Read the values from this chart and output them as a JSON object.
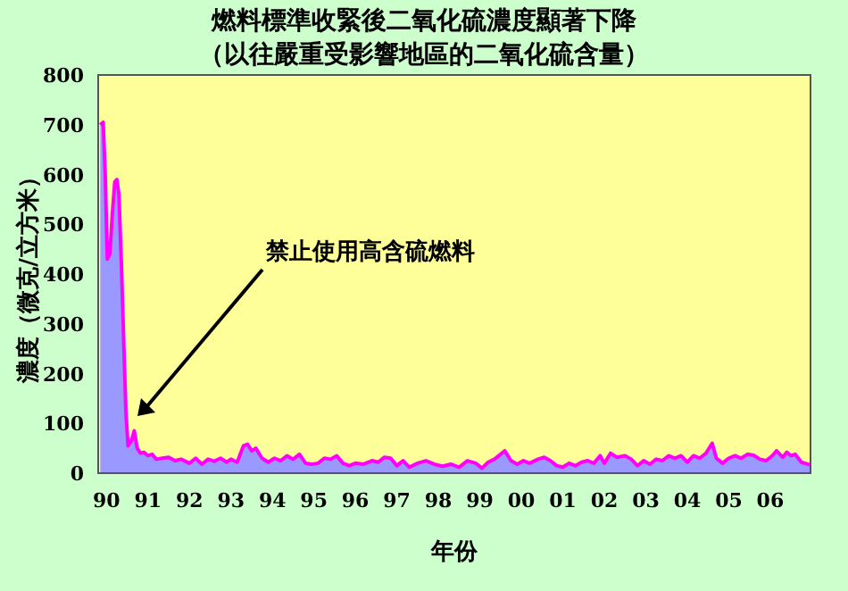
{
  "chart_data": {
    "type": "area",
    "title": "燃料標準收緊後二氧化硫濃度顯著下降",
    "subtitle": "（以往嚴重受影響地區的二氧化硫含量）",
    "xlabel": "年份",
    "ylabel": "濃度（微克/立方米）",
    "annotations": [
      "禁止使用高含硫燃料"
    ],
    "xlim": [
      1989.8,
      2006.97
    ],
    "ylim": [
      0,
      800
    ],
    "xticks": [
      {
        "value": 1990,
        "label": "90"
      },
      {
        "value": 1991,
        "label": "91"
      },
      {
        "value": 1992,
        "label": "92"
      },
      {
        "value": 1993,
        "label": "93"
      },
      {
        "value": 1994,
        "label": "94"
      },
      {
        "value": 1995,
        "label": "95"
      },
      {
        "value": 1996,
        "label": "96"
      },
      {
        "value": 1997,
        "label": "97"
      },
      {
        "value": 1998,
        "label": "98"
      },
      {
        "value": 1999,
        "label": "99"
      },
      {
        "value": 2000,
        "label": "00"
      },
      {
        "value": 2001,
        "label": "01"
      },
      {
        "value": 2002,
        "label": "02"
      },
      {
        "value": 2003,
        "label": "03"
      },
      {
        "value": 2004,
        "label": "04"
      },
      {
        "value": 2005,
        "label": "05"
      },
      {
        "value": 2006,
        "label": "06"
      }
    ],
    "yticks": [
      0,
      100,
      200,
      300,
      400,
      500,
      600,
      700,
      800
    ],
    "grid": false,
    "marker": "none",
    "line_style": "solid",
    "series": [
      {
        "color": "#9999ff",
        "x": [
          1989.85,
          1989.92,
          1989.97,
          1990.02,
          1990.08,
          1990.14,
          1990.2,
          1990.25,
          1990.3,
          1990.36,
          1990.42,
          1990.47,
          1990.52,
          1990.6,
          1990.67,
          1990.74,
          1990.82,
          1990.9,
          1991.0,
          1991.1,
          1991.2,
          1991.35,
          1991.5,
          1991.65,
          1991.8,
          1992.0,
          1992.15,
          1992.3,
          1992.45,
          1992.6,
          1992.75,
          1992.9,
          1993.0,
          1993.15,
          1993.3,
          1993.4,
          1993.5,
          1993.6,
          1993.75,
          1993.9,
          1994.05,
          1994.2,
          1994.35,
          1994.5,
          1994.65,
          1994.8,
          1994.95,
          1995.1,
          1995.25,
          1995.4,
          1995.55,
          1995.7,
          1995.85,
          1996.0,
          1996.2,
          1996.4,
          1996.55,
          1996.7,
          1996.85,
          1997.0,
          1997.15,
          1997.3,
          1997.5,
          1997.7,
          1997.9,
          1998.1,
          1998.3,
          1998.5,
          1998.7,
          1998.9,
          1999.05,
          1999.2,
          1999.35,
          1999.5,
          1999.6,
          1999.75,
          1999.9,
          2000.05,
          2000.2,
          2000.4,
          2000.55,
          2000.7,
          2000.85,
          2001.0,
          2001.15,
          2001.3,
          2001.45,
          2001.6,
          2001.75,
          2001.9,
          2002.0,
          2002.15,
          2002.3,
          2002.5,
          2002.65,
          2002.8,
          2002.95,
          2003.1,
          2003.25,
          2003.4,
          2003.55,
          2003.7,
          2003.85,
          2004.0,
          2004.15,
          2004.3,
          2004.45,
          2004.6,
          2004.7,
          2004.85,
          2005.0,
          2005.15,
          2005.3,
          2005.45,
          2005.6,
          2005.75,
          2005.9,
          2006.05,
          2006.15,
          2006.3,
          2006.4,
          2006.5,
          2006.6,
          2006.75,
          2006.9,
          2006.95
        ],
        "values": [
          700,
          705,
          600,
          430,
          440,
          520,
          585,
          590,
          560,
          420,
          250,
          120,
          55,
          65,
          85,
          50,
          40,
          42,
          35,
          38,
          28,
          30,
          32,
          25,
          28,
          20,
          30,
          18,
          28,
          24,
          30,
          22,
          28,
          22,
          55,
          58,
          45,
          50,
          30,
          22,
          30,
          25,
          35,
          28,
          38,
          20,
          18,
          20,
          30,
          28,
          35,
          20,
          15,
          20,
          18,
          25,
          22,
          32,
          30,
          15,
          25,
          12,
          20,
          25,
          18,
          14,
          18,
          12,
          25,
          20,
          10,
          22,
          28,
          38,
          45,
          25,
          18,
          25,
          20,
          28,
          32,
          25,
          15,
          12,
          20,
          15,
          22,
          25,
          20,
          35,
          20,
          40,
          32,
          35,
          28,
          15,
          25,
          18,
          28,
          25,
          35,
          30,
          35,
          22,
          35,
          30,
          40,
          60,
          30,
          20,
          30,
          35,
          30,
          38,
          36,
          28,
          25,
          35,
          45,
          32,
          42,
          35,
          38,
          22,
          18,
          17
        ]
      }
    ]
  }
}
